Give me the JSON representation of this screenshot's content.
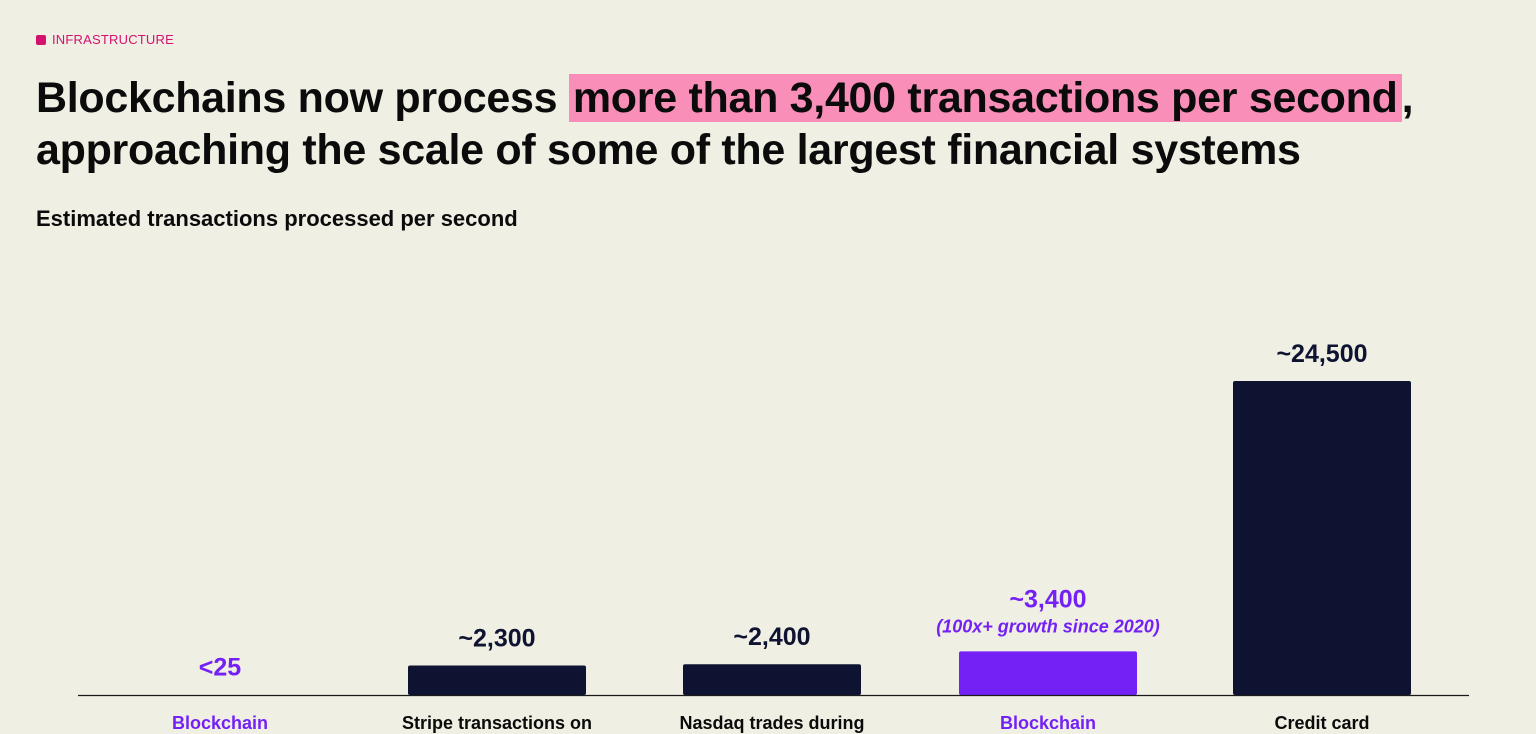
{
  "tag": {
    "label": "INFRASTRUCTURE"
  },
  "headline": {
    "before": "Blockchains now process ",
    "highlight": "more than 3,400 transactions per second",
    "after": ",",
    "line2": "approaching the scale of some of the largest financial systems"
  },
  "colors": {
    "background": "#f0efe4",
    "tag": "#d4116e",
    "highlight": "#f98fb8",
    "bar_dark": "#0d1330",
    "bar_accent": "#7321f5",
    "text_dark": "#0b0b0b"
  },
  "chart_data": {
    "type": "bar",
    "title": "Estimated transactions processed per second",
    "categories": [
      "Blockchain",
      "Stripe transactions on",
      "Nasdaq trades during",
      "Blockchain",
      "Credit card"
    ],
    "values": [
      25,
      2300,
      2400,
      3400,
      24500
    ],
    "value_labels": [
      "<25",
      "~2,300",
      "~2,400",
      "~3,400",
      "~24,500"
    ],
    "annotations": [
      "",
      "",
      "",
      "(100x+ growth since 2020)",
      ""
    ],
    "highlight_indices": [
      0,
      3
    ],
    "ylim": [
      0,
      24500
    ],
    "grid": false,
    "legend": "none"
  }
}
